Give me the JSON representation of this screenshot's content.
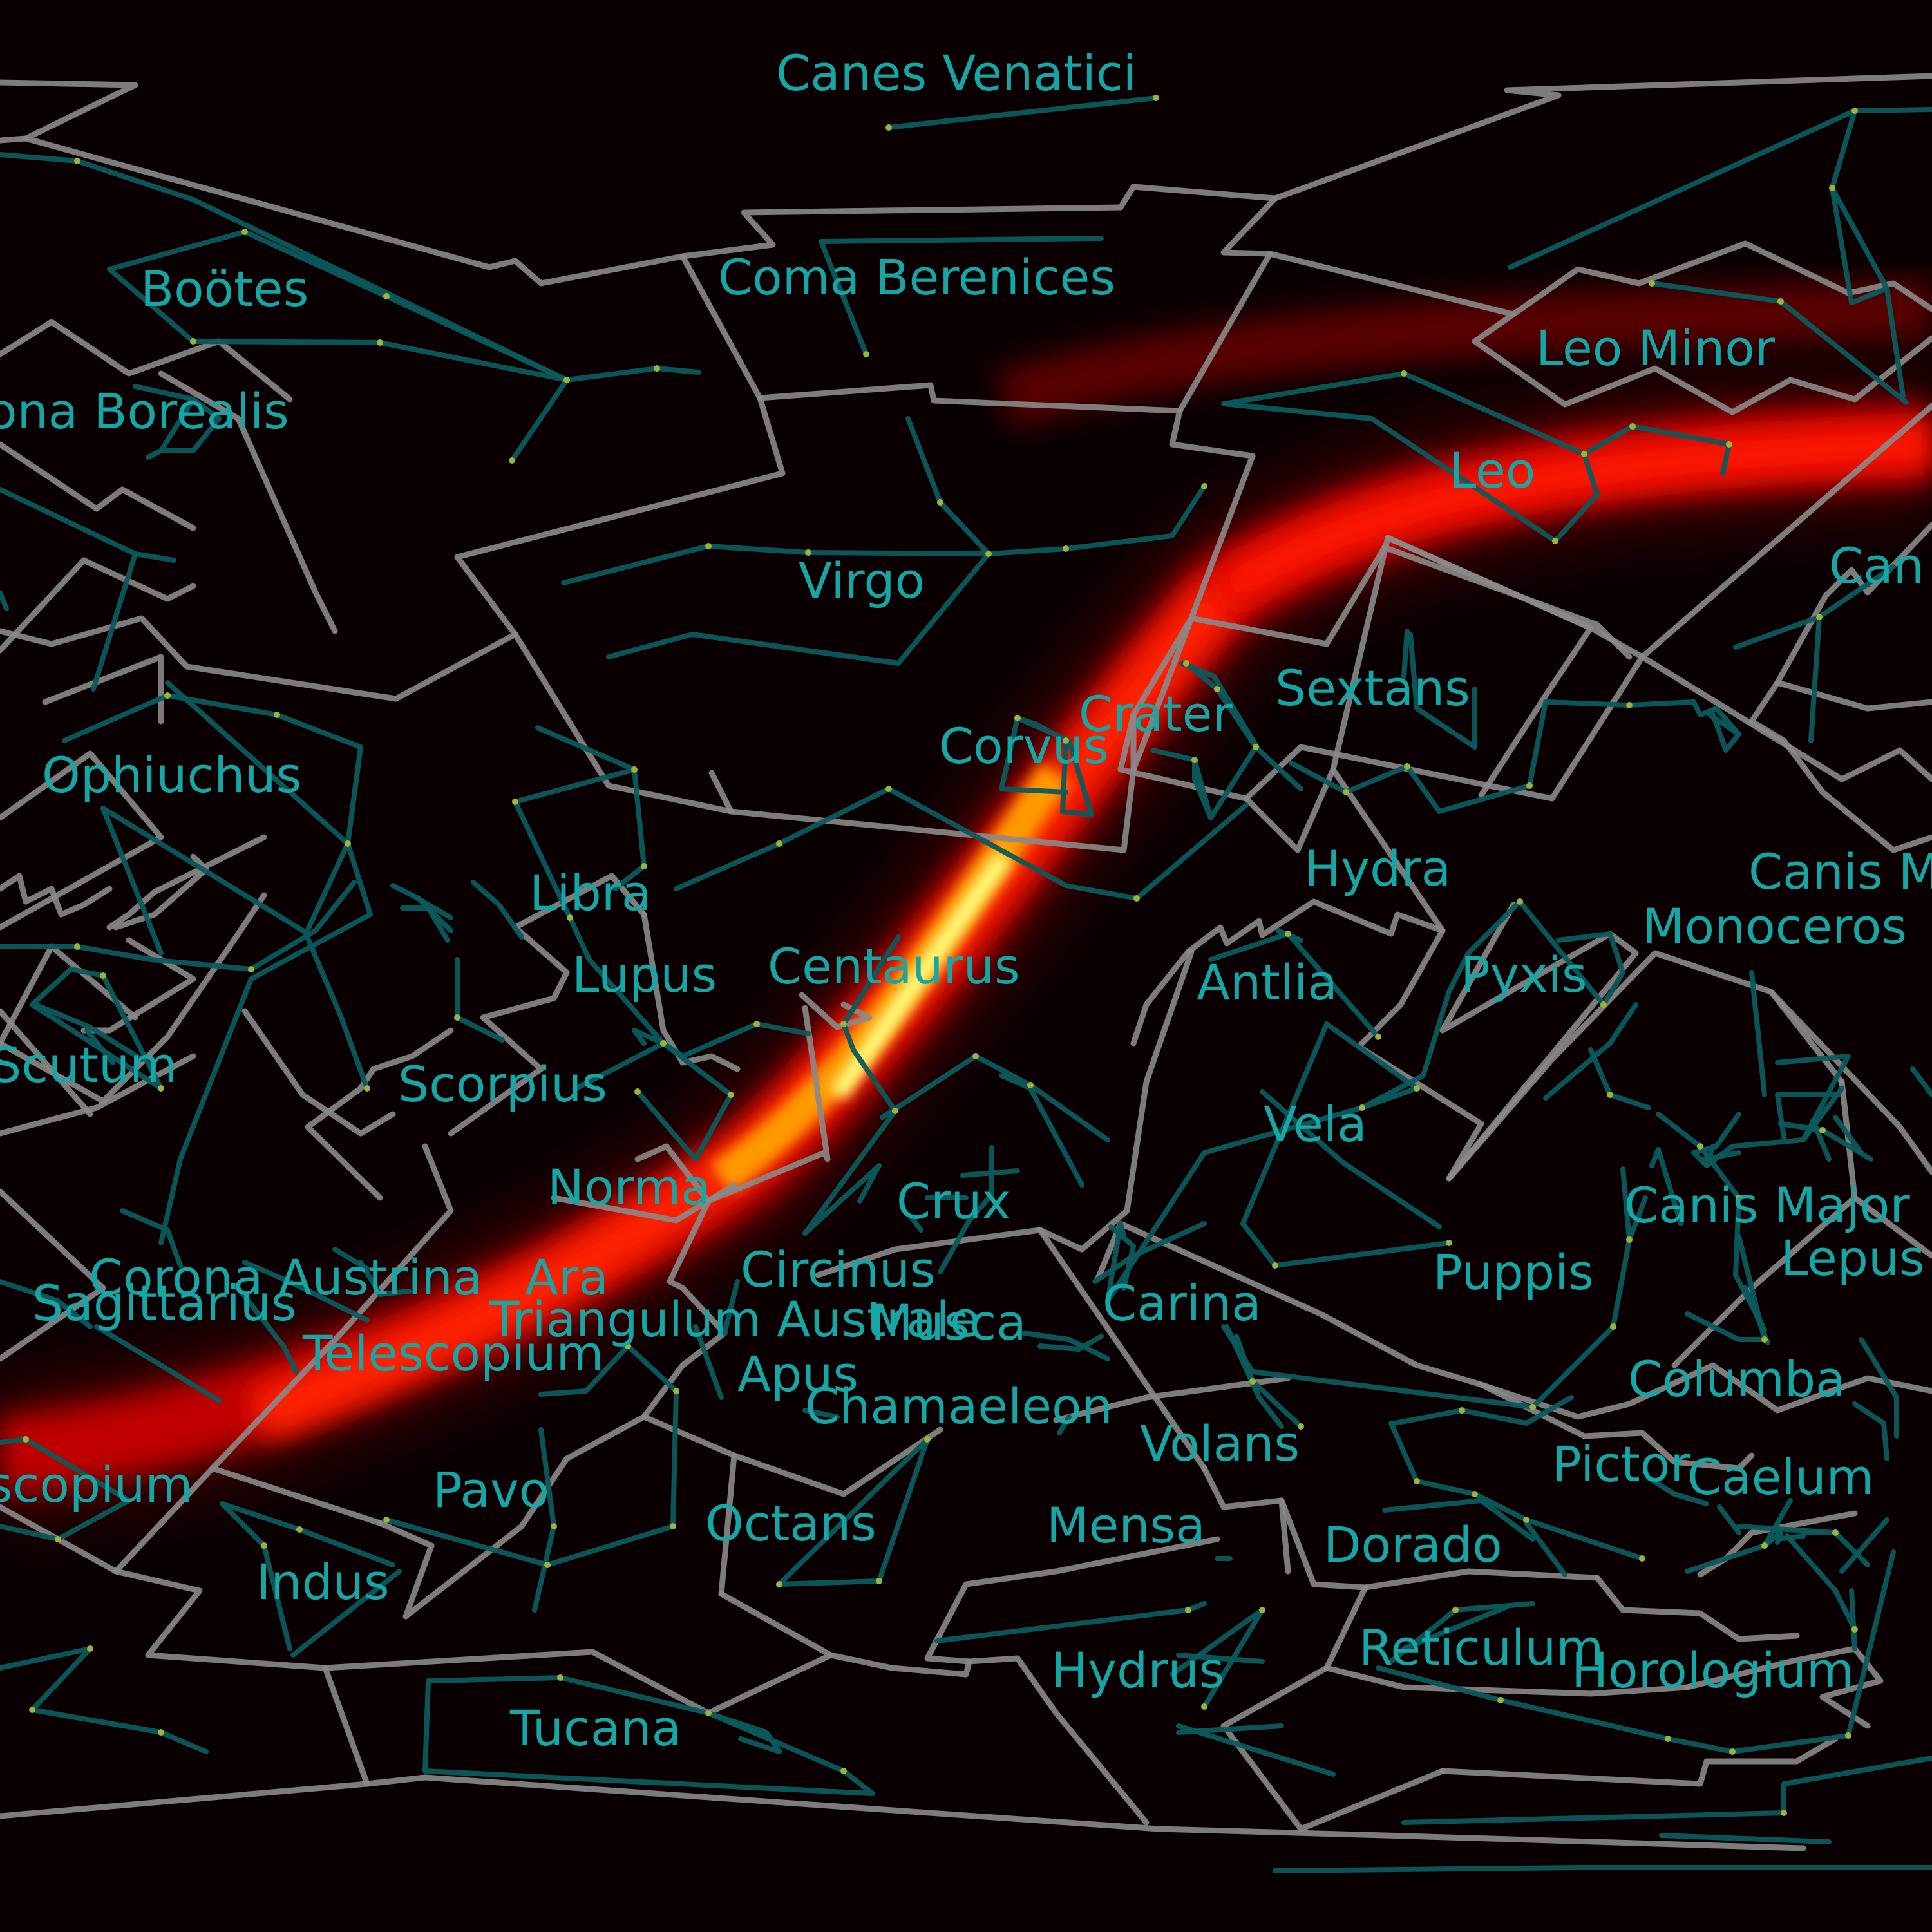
{
  "colors": {
    "background": "#0a0002",
    "label": "#14a7a5",
    "boundary": "#8a8a8a",
    "figure_line": "#0b5a5c",
    "star": "#9ab33a",
    "milky_way": [
      "#3d0000",
      "#c00000",
      "#ff2000",
      "#ff9a00",
      "#ffff80"
    ]
  },
  "constellations": [
    "Canes Venatici",
    "Boötes",
    "Coma Berenices",
    "ona Borealis",
    "Leo Minor",
    "Leo",
    "Virgo",
    "Can",
    "Crater",
    "Sextans",
    "Corvus",
    "Ophiuchus",
    "Libra",
    "Hydra",
    "Canis M",
    "Monoceros",
    "Lupus",
    "Centaurus",
    "Antlia",
    "Pyxis",
    "Scutum",
    "Scorpius",
    "Vela",
    "Norma",
    "Crux",
    "Canis Major",
    "Lepus",
    "Corona Austrina",
    "Ara",
    "Circinus",
    "Puppis",
    "Sagittarius",
    "Triangulum Australe",
    "Musca",
    "Carina",
    "Telescopium",
    "Apus",
    "Columba",
    "Chamaeleon",
    "Volans",
    "Pictor",
    "Caelum",
    "scopium",
    "Pavo",
    "Mensa",
    "Octans",
    "Dorado",
    "Indus",
    "Reticulum",
    "Horologium",
    "Hydrus",
    "Tucana"
  ]
}
